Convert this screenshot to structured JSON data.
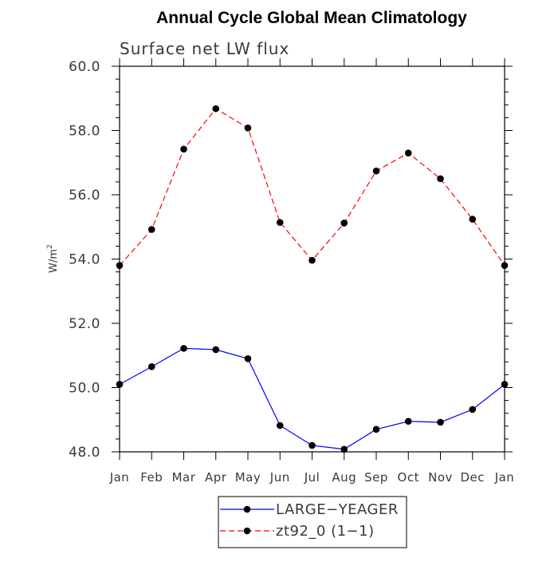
{
  "chart_data": {
    "type": "line",
    "title": "Annual Cycle Global Mean Climatology",
    "subtitle": "Surface net LW flux",
    "xlabel": "",
    "ylabel": "W/m",
    "ylabel_superscript": "2",
    "ylim": [
      48.0,
      60.0
    ],
    "yticks": [
      "48.0",
      "50.0",
      "52.0",
      "54.0",
      "56.0",
      "58.0",
      "60.0"
    ],
    "categories": [
      "Jan",
      "Feb",
      "Mar",
      "Apr",
      "May",
      "Jun",
      "Jul",
      "Aug",
      "Sep",
      "Oct",
      "Nov",
      "Dec",
      "Jan"
    ],
    "legend_placement": "bottom-center",
    "grid": false,
    "series": [
      {
        "name": "LARGE−YEAGER",
        "color": "#0000ff",
        "dash": "solid",
        "values": [
          50.1,
          50.65,
          51.22,
          51.18,
          50.9,
          48.82,
          48.2,
          48.08,
          48.7,
          48.95,
          48.92,
          49.32,
          50.1
        ]
      },
      {
        "name": "zt92_0 (1−1)",
        "color": "#ff0000",
        "dash": "dashed",
        "values": [
          53.8,
          54.92,
          57.42,
          58.68,
          58.08,
          55.14,
          53.96,
          55.12,
          56.74,
          57.3,
          56.5,
          55.24,
          53.8
        ]
      }
    ]
  }
}
